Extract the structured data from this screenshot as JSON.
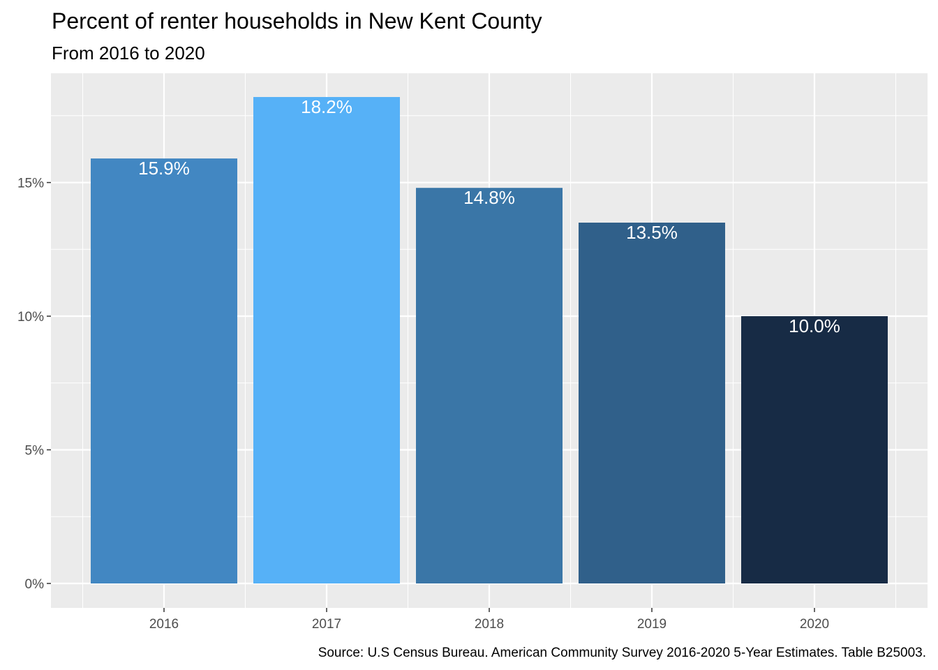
{
  "chart_data": {
    "type": "bar",
    "title": "Percent of renter households in New Kent County",
    "subtitle": "From 2016 to 2020",
    "caption": "Source: U.S Census Bureau. American Community Survey 2016-2020 5-Year Estimates. Table B25003.",
    "xlabel": "",
    "ylabel": "",
    "categories": [
      "2016",
      "2017",
      "2018",
      "2019",
      "2020"
    ],
    "values": [
      15.9,
      18.2,
      14.8,
      13.5,
      10.0
    ],
    "value_labels": [
      "15.9%",
      "18.2%",
      "14.8%",
      "13.5%",
      "10.0%"
    ],
    "bar_colors": [
      "#4287c2",
      "#56b1f7",
      "#3a76a7",
      "#30608a",
      "#172b45"
    ],
    "ylim": [
      0,
      18.2
    ],
    "yticks": [
      0,
      5,
      10,
      15
    ],
    "ytick_labels": [
      "0%",
      "5%",
      "10%",
      "15%"
    ],
    "grid": true,
    "legend": "none",
    "panel_background": "#ebebeb",
    "gridline_color": "#ffffff"
  }
}
